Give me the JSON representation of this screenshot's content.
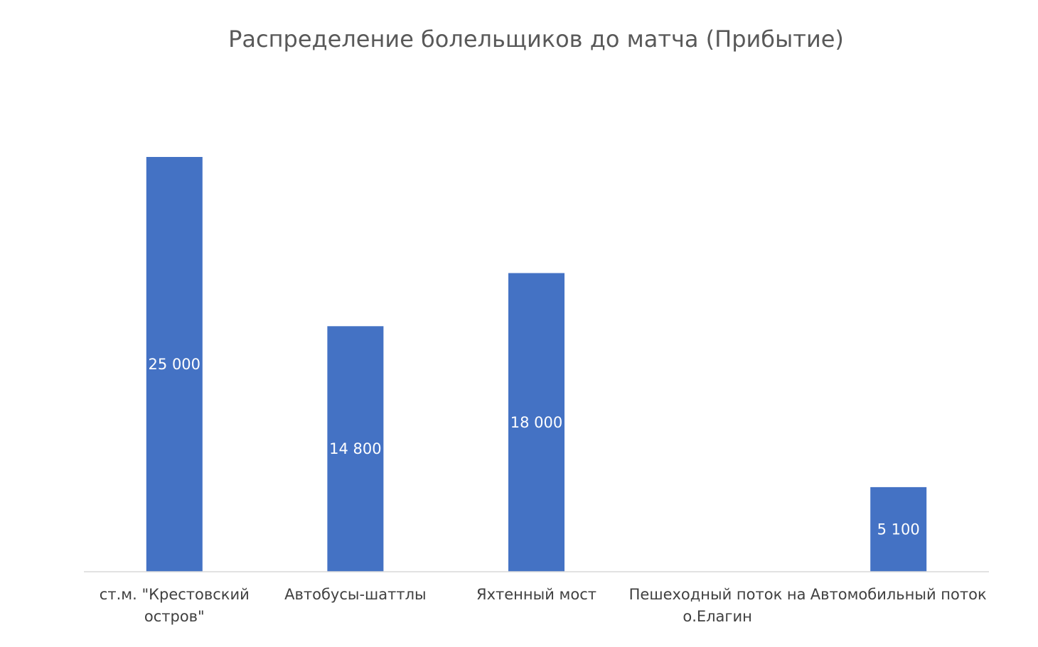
{
  "chart_data": {
    "type": "bar",
    "title": "Распределение болельщиков до матча (Прибытие)",
    "xlabel": "",
    "ylabel": "",
    "categories": [
      [
        "ст.м. \"Крестовский",
        "остров\""
      ],
      [
        "Автобусы-шаттлы"
      ],
      [
        "Яхтенный мост"
      ],
      [
        "Пешеходный поток на",
        "о.Елагин"
      ],
      [
        "Автомобильный поток"
      ]
    ],
    "values": [
      25000,
      14800,
      18000,
      0,
      5100
    ],
    "data_labels": [
      "25 000",
      "14 800",
      "18 000",
      "",
      "5 100"
    ],
    "ylim": [
      0,
      25000
    ],
    "grid": false,
    "legend": "none",
    "bar_color": "#4472C4",
    "axis_color": "#D9D9D9"
  }
}
